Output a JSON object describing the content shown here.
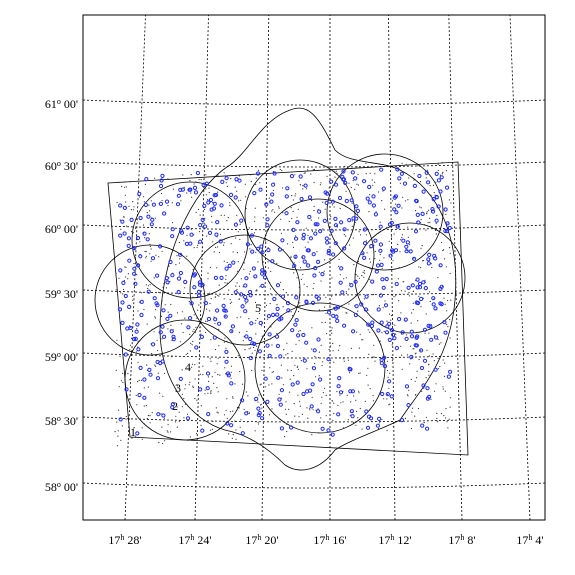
{
  "axes": {
    "dec_labels": [
      [
        "61",
        "o",
        " 00'"
      ],
      [
        "60",
        "o",
        " 30'"
      ],
      [
        "60",
        "o",
        " 00'"
      ],
      [
        "59",
        "o",
        " 30'"
      ],
      [
        "59",
        "o",
        " 00'"
      ],
      [
        "58",
        "o",
        " 30'"
      ],
      [
        "58",
        "o",
        " 00'"
      ]
    ],
    "ra_labels": [
      [
        "17",
        "h",
        " 28'"
      ],
      [
        "17",
        "h",
        " 24'"
      ],
      [
        "17",
        "h",
        " 20'"
      ],
      [
        "17",
        "h",
        " 16'"
      ],
      [
        "17",
        "h",
        " 12'"
      ],
      [
        "17",
        "h",
        " 8'"
      ],
      [
        "17",
        "h",
        " 4'"
      ]
    ]
  },
  "annotations": [
    "1",
    "2",
    "3",
    "4",
    "5"
  ]
}
